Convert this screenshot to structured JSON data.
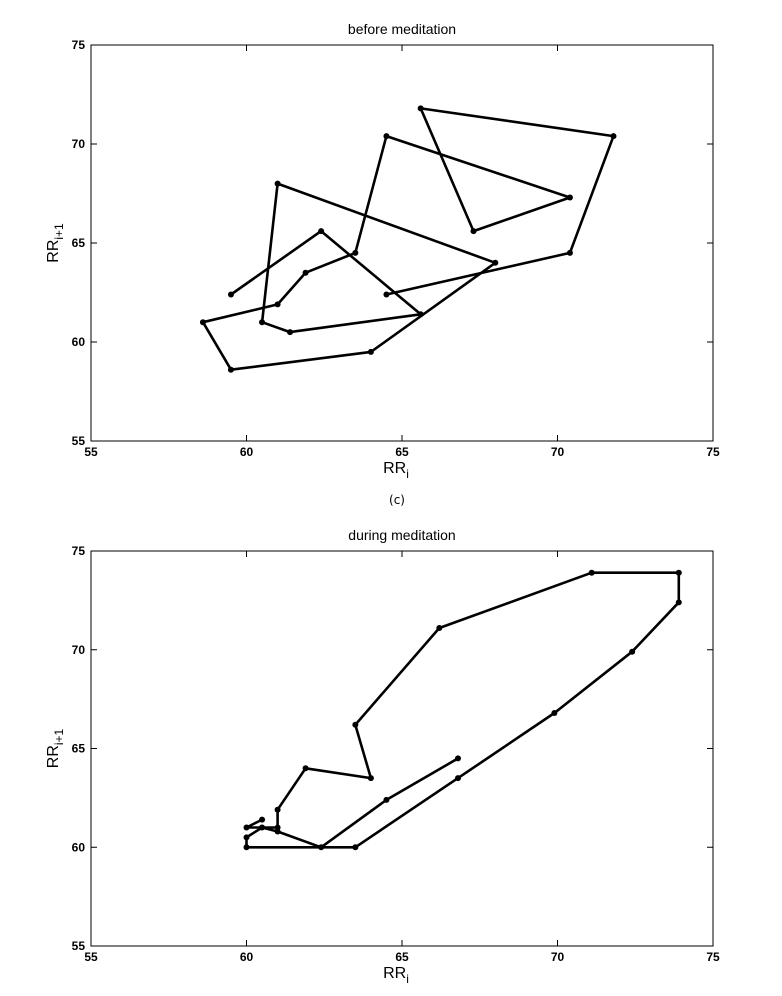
{
  "caption": "(c)",
  "chart_data": [
    {
      "type": "line",
      "title": "before meditation",
      "xlabel": "RR",
      "xlabel_sub": "i",
      "ylabel": "RR",
      "ylabel_sub": "i+1",
      "xlim": [
        55,
        75
      ],
      "ylim": [
        55,
        75
      ],
      "xticks": [
        55,
        60,
        65,
        70,
        75
      ],
      "yticks": [
        55,
        60,
        65,
        70,
        75
      ],
      "grid": false,
      "series": [
        {
          "points": [
            [
              59.5,
              62.4
            ],
            [
              62.4,
              65.6
            ],
            [
              65.6,
              61.4
            ],
            [
              61.4,
              60.5
            ],
            [
              60.5,
              61.0
            ],
            [
              61.0,
              68.0
            ],
            [
              68.0,
              64.0
            ],
            [
              64.0,
              59.5
            ],
            [
              59.5,
              58.6
            ],
            [
              58.6,
              61.0
            ],
            [
              61.0,
              61.9
            ],
            [
              61.9,
              63.5
            ],
            [
              63.5,
              64.5
            ],
            [
              64.5,
              70.4
            ],
            [
              70.4,
              67.3
            ],
            [
              67.3,
              65.6
            ],
            [
              65.6,
              71.8
            ],
            [
              71.8,
              70.4
            ],
            [
              70.4,
              64.5
            ],
            [
              64.5,
              62.4
            ]
          ]
        }
      ]
    },
    {
      "type": "line",
      "title": "during meditation",
      "xlabel": "RR",
      "xlabel_sub": "i",
      "ylabel": "RR",
      "ylabel_sub": "i+1",
      "xlim": [
        55,
        75
      ],
      "ylim": [
        55,
        75
      ],
      "xticks": [
        55,
        60,
        65,
        70,
        75
      ],
      "yticks": [
        55,
        60,
        65,
        70,
        75
      ],
      "grid": false,
      "series": [
        {
          "points": [
            [
              60.5,
              61.4
            ],
            [
              60.0,
              61.0
            ],
            [
              61.0,
              61.0
            ],
            [
              61.0,
              61.9
            ],
            [
              61.9,
              64.0
            ],
            [
              64.0,
              63.5
            ],
            [
              63.5,
              66.2
            ],
            [
              66.2,
              71.1
            ],
            [
              71.1,
              73.9
            ],
            [
              73.9,
              73.9
            ],
            [
              73.9,
              72.4
            ],
            [
              72.4,
              69.9
            ],
            [
              69.9,
              66.8
            ],
            [
              66.8,
              63.5
            ],
            [
              63.5,
              60.0
            ],
            [
              60.0,
              60.0
            ],
            [
              60.0,
              60.5
            ],
            [
              60.5,
              61.0
            ],
            [
              61.0,
              60.8
            ],
            [
              62.4,
              60.0
            ],
            [
              64.5,
              62.4
            ],
            [
              66.8,
              64.5
            ]
          ]
        }
      ]
    }
  ]
}
